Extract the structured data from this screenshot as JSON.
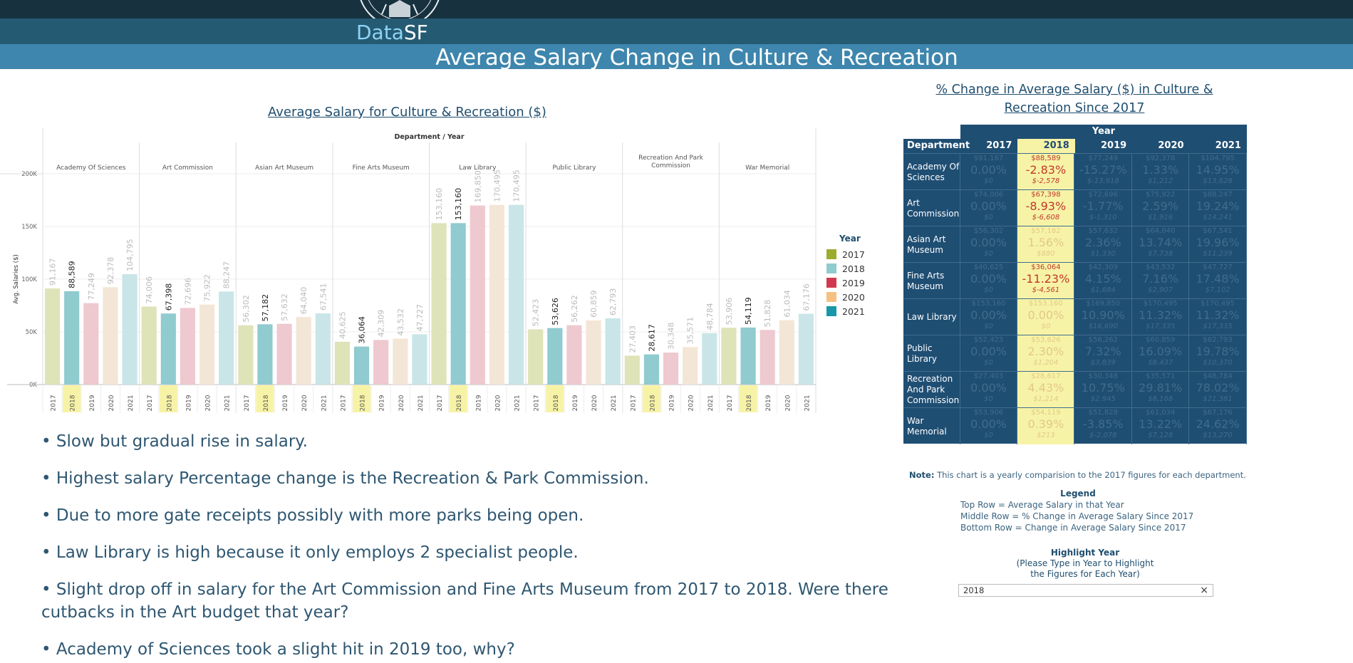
{
  "header": {
    "brand_data": "Data",
    "brand_sf": "SF",
    "title": "Average Salary Change in Culture & Recreation"
  },
  "chart_title": "Average Salary for Culture & Recreation ($)",
  "chart_data": {
    "type": "bar",
    "title": "Average Salary for Culture & Recreation ($)",
    "column_header": "Department / Year",
    "ylabel": "Avg. Salaries ($)",
    "xlabel": "",
    "ylim": [
      0,
      200000
    ],
    "yticks": [
      0,
      50000,
      100000,
      150000,
      200000
    ],
    "ytick_labels": [
      "0K",
      "50K",
      "100K",
      "150K",
      "200K"
    ],
    "years": [
      "2017",
      "2018",
      "2019",
      "2020",
      "2021"
    ],
    "highlight_year": "2018",
    "departments": [
      {
        "name": "Academy Of Sciences",
        "values": [
          91167,
          88589,
          77249,
          92378,
          104795
        ],
        "labels": [
          "91,167",
          "88,589",
          "77,249",
          "92,378",
          "104,795"
        ]
      },
      {
        "name": "Art Commission",
        "values": [
          74006,
          67398,
          72696,
          75922,
          88247
        ],
        "labels": [
          "74,006",
          "67,398",
          "72,696",
          "75,922",
          "88,247"
        ]
      },
      {
        "name": "Asian Art Museum",
        "values": [
          56302,
          57182,
          57632,
          64040,
          67541
        ],
        "labels": [
          "56,302",
          "57,182",
          "57,632",
          "64,040",
          "67,541"
        ]
      },
      {
        "name": "Fine Arts Museum",
        "values": [
          40625,
          36064,
          42309,
          43532,
          47727
        ],
        "labels": [
          "40,625",
          "36,064",
          "42,309",
          "43,532",
          "47,727"
        ]
      },
      {
        "name": "Law Library",
        "values": [
          153160,
          153160,
          169850,
          170495,
          170495
        ],
        "labels": [
          "153,160",
          "153,160",
          "169,850",
          "170,495",
          "170,495"
        ]
      },
      {
        "name": "Public Library",
        "values": [
          52423,
          53626,
          56262,
          60859,
          62793
        ],
        "labels": [
          "52,423",
          "53,626",
          "56,262",
          "60,859",
          "62,793"
        ]
      },
      {
        "name": "Recreation And Park Commission",
        "values": [
          27403,
          28617,
          30348,
          35571,
          48784
        ],
        "labels": [
          "27,403",
          "28,617",
          "30,348",
          "35,571",
          "48,784"
        ]
      },
      {
        "name": "War Memorial",
        "values": [
          53906,
          54119,
          51828,
          61034,
          67176
        ],
        "labels": [
          "53,906",
          "54,119",
          "51,828",
          "61,034",
          "67,176"
        ]
      }
    ],
    "colors": {
      "2017": "#dfe3b8",
      "2018": "#8fcbcf",
      "2019": "#eec9cf",
      "2020": "#f3e6d6",
      "2021": "#c9e5e8",
      "highlight_bg": "#f7f3a6"
    },
    "legend": {
      "title": "Year",
      "position": "right",
      "items": [
        {
          "label": "2017",
          "color": "#9bad2a"
        },
        {
          "label": "2018",
          "color": "#8fcbcf"
        },
        {
          "label": "2019",
          "color": "#d2394e"
        },
        {
          "label": "2020",
          "color": "#f5c182"
        },
        {
          "label": "2021",
          "color": "#1797a8"
        }
      ]
    },
    "grid": true
  },
  "notes": [
    "• Slow but gradual rise in salary.",
    "• Highest salary Percentage change is the Recreation & Park Commission.",
    "• Due to more gate receipts possibly with more parks being open.",
    "• Law Library is high because it only employs 2 specialist people.",
    "• Slight drop off in salary for the Art Commission and Fine Arts Museum from 2017 to 2018. Were there cutbacks in the Art budget that year?",
    "• Academy of Sciences took a slight hit in 2019 too, why?"
  ],
  "table": {
    "title": "% Change in Average Salary ($) in Culture & Recreation Since 2017",
    "year_header": "Year",
    "dept_header": "Department",
    "years": [
      "2017",
      "2018",
      "2019",
      "2020",
      "2021"
    ],
    "highlight_index": 1,
    "rows": [
      {
        "dept": "Academy Of Sciences",
        "cells": [
          {
            "top": "$91,167",
            "mid": "0.00%",
            "bot": "$0"
          },
          {
            "top": "$88,589",
            "mid": "-2.83%",
            "bot": "$-2,578"
          },
          {
            "top": "$77,249",
            "mid": "-15.27%",
            "bot": "$-13,918"
          },
          {
            "top": "$92,378",
            "mid": "1.33%",
            "bot": "$1,212"
          },
          {
            "top": "$104,795",
            "mid": "14.95%",
            "bot": "$13,628"
          }
        ]
      },
      {
        "dept": "Art Commission",
        "cells": [
          {
            "top": "$74,006",
            "mid": "0.00%",
            "bot": "$0"
          },
          {
            "top": "$67,398",
            "mid": "-8.93%",
            "bot": "$-6,608"
          },
          {
            "top": "$72,696",
            "mid": "-1.77%",
            "bot": "$-1,310"
          },
          {
            "top": "$75,922",
            "mid": "2.59%",
            "bot": "$1,916"
          },
          {
            "top": "$88,247",
            "mid": "19.24%",
            "bot": "$14,241"
          }
        ]
      },
      {
        "dept": "Asian Art Museum",
        "cells": [
          {
            "top": "$56,302",
            "mid": "0.00%",
            "bot": "$0"
          },
          {
            "top": "$57,182",
            "mid": "1.56%",
            "bot": "$880"
          },
          {
            "top": "$57,632",
            "mid": "2.36%",
            "bot": "$1,330"
          },
          {
            "top": "$64,040",
            "mid": "13.74%",
            "bot": "$7,738"
          },
          {
            "top": "$67,541",
            "mid": "19.96%",
            "bot": "$11,239"
          }
        ]
      },
      {
        "dept": "Fine Arts Museum",
        "cells": [
          {
            "top": "$40,625",
            "mid": "0.00%",
            "bot": "$0"
          },
          {
            "top": "$36,064",
            "mid": "-11.23%",
            "bot": "$-4,561"
          },
          {
            "top": "$42,309",
            "mid": "4.15%",
            "bot": "$1,684"
          },
          {
            "top": "$43,532",
            "mid": "7.16%",
            "bot": "$2,907"
          },
          {
            "top": "$47,727",
            "mid": "17.48%",
            "bot": "$7,102"
          }
        ]
      },
      {
        "dept": "Law Library",
        "cells": [
          {
            "top": "$153,160",
            "mid": "0.00%",
            "bot": "$0"
          },
          {
            "top": "$153,160",
            "mid": "0.00%",
            "bot": "$0"
          },
          {
            "top": "$169,850",
            "mid": "10.90%",
            "bot": "$16,690"
          },
          {
            "top": "$170,495",
            "mid": "11.32%",
            "bot": "$17,335"
          },
          {
            "top": "$170,495",
            "mid": "11.32%",
            "bot": "$17,335"
          }
        ]
      },
      {
        "dept": "Public Library",
        "cells": [
          {
            "top": "$52,423",
            "mid": "0.00%",
            "bot": "$0"
          },
          {
            "top": "$53,626",
            "mid": "2.30%",
            "bot": "$1,204"
          },
          {
            "top": "$56,262",
            "mid": "7.32%",
            "bot": "$3,839"
          },
          {
            "top": "$60,859",
            "mid": "16.09%",
            "bot": "$8,437"
          },
          {
            "top": "$62,793",
            "mid": "19.78%",
            "bot": "$10,370"
          }
        ]
      },
      {
        "dept": "Recreation And Park Commission",
        "cells": [
          {
            "top": "$27,403",
            "mid": "0.00%",
            "bot": "$0"
          },
          {
            "top": "$28,617",
            "mid": "4.43%",
            "bot": "$1,214"
          },
          {
            "top": "$30,348",
            "mid": "10.75%",
            "bot": "$2,945"
          },
          {
            "top": "$35,571",
            "mid": "29.81%",
            "bot": "$8,168"
          },
          {
            "top": "$48,784",
            "mid": "78.02%",
            "bot": "$21,381"
          }
        ]
      },
      {
        "dept": "War Memorial",
        "cells": [
          {
            "top": "$53,906",
            "mid": "0.00%",
            "bot": "$0"
          },
          {
            "top": "$54,119",
            "mid": "0.39%",
            "bot": "$213"
          },
          {
            "top": "$51,828",
            "mid": "-3.85%",
            "bot": "$-2,078"
          },
          {
            "top": "$61,034",
            "mid": "13.22%",
            "bot": "$7,128"
          },
          {
            "top": "$67,176",
            "mid": "24.62%",
            "bot": "$13,270"
          }
        ]
      }
    ]
  },
  "table_note_label": "Note:",
  "table_note": " This chart is a yearly comparision to the 2017 figures for each department.",
  "legend2": {
    "title": "Legend",
    "lines": [
      "Top Row =  Average Salary in that Year",
      "Middle Row = % Change in Average Salary Since 2017",
      "Bottom Row = Change in Average Salary Since 2017"
    ]
  },
  "highlight": {
    "title": "Highlight Year",
    "sub1": "(Please Type in Year to Highlight",
    "sub2": "the Figures for Each Year)",
    "value": "2018",
    "clear": "×"
  }
}
